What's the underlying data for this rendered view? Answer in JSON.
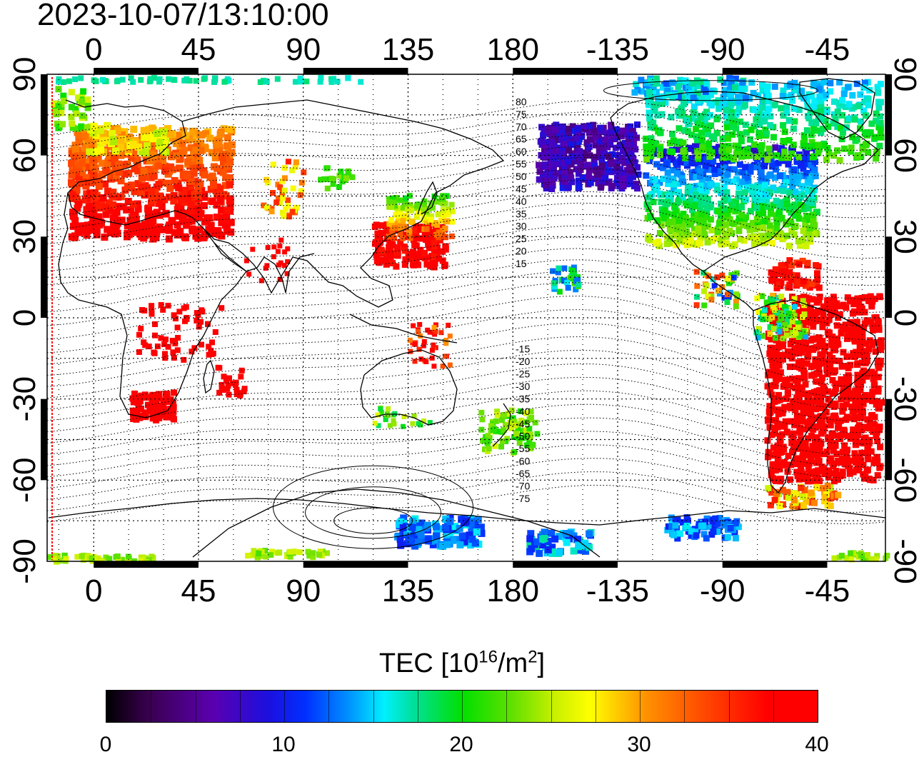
{
  "timestamp": "2023-10-07/13:10:00",
  "longitude_ticks": [
    "0",
    "45",
    "90",
    "135",
    "180",
    "-135",
    "-90",
    "-45"
  ],
  "latitude_ticks_left": [
    "90",
    "60",
    "30",
    "0",
    "-30",
    "-60",
    "-90"
  ],
  "latitude_ticks_right": [
    "90",
    "60",
    "30",
    "0",
    "-30",
    "-60",
    "-90"
  ],
  "contour_labels_north": [
    "80",
    "75",
    "70",
    "65",
    "60",
    "55",
    "50",
    "45",
    "40",
    "35",
    "30",
    "25",
    "20",
    "15"
  ],
  "contour_labels_south": [
    "-15",
    "-20",
    "-25",
    "-30",
    "-35",
    "-40",
    "-45",
    "-50",
    "-55",
    "-60",
    "-65",
    "-70",
    "-75"
  ],
  "colorbar": {
    "title_main": "TEC  [10",
    "title_exp": "16",
    "title_mid": "/m",
    "title_exp2": "2",
    "title_end": "]",
    "min": 0,
    "max": 40,
    "tick_labels": [
      "0",
      "10",
      "20",
      "30",
      "40"
    ]
  },
  "colors": {
    "background": "#ffffff",
    "grid": "#000000",
    "terminator": "#ff0000"
  }
}
